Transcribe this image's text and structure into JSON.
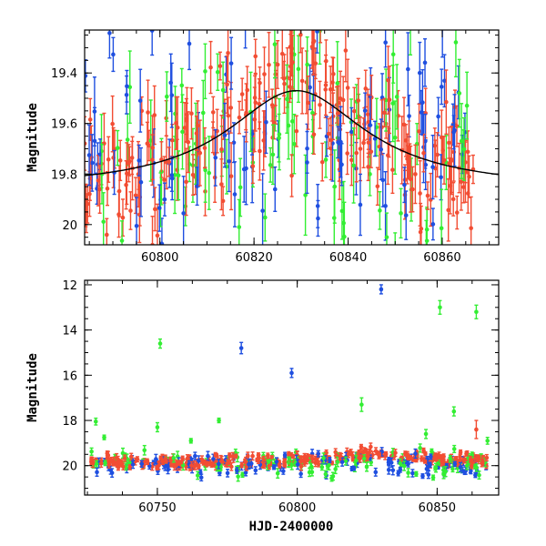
{
  "colors": {
    "blue": "#1f4fe0",
    "green": "#33ee33",
    "red": "#f24d33",
    "model": "#000000"
  },
  "chart_data": [
    {
      "type": "scatter",
      "panel": "top",
      "xlabel": "",
      "ylabel": "Magnitude",
      "xlim": [
        60784,
        60872
      ],
      "ylim": [
        20.08,
        19.23
      ],
      "y_inverted": true,
      "x_ticks": [
        60800,
        60820,
        60840,
        60860
      ],
      "y_ticks": [
        19.4,
        19.6,
        19.8,
        20
      ],
      "y_tick_labels": [
        "19.4",
        "19.6",
        "19.8",
        "20"
      ],
      "model_curve": {
        "peak_x": 60829,
        "peak_mag": 19.47,
        "baseline_mag": 19.86,
        "width_days": 18
      },
      "series": [
        {
          "color": "green",
          "n_points": 90,
          "x_range": [
            60784,
            60866
          ],
          "mean_mag": 19.7,
          "scatter_mag": 0.25,
          "typical_err": 0.11
        },
        {
          "color": "blue",
          "n_points": 100,
          "x_range": [
            60784,
            60865
          ],
          "mean_mag": 19.68,
          "scatter_mag": 0.22,
          "typical_err": 0.1
        },
        {
          "color": "red",
          "n_points": 230,
          "x_range": [
            60784,
            60867
          ],
          "follows_model": true,
          "scatter_mag": 0.12,
          "typical_err": 0.09
        }
      ]
    },
    {
      "type": "scatter",
      "panel": "bottom",
      "xlabel": "HJD-2400000",
      "ylabel": "Magnitude",
      "xlim": [
        60724,
        60872
      ],
      "ylim": [
        21.3,
        11.8
      ],
      "y_inverted": true,
      "x_ticks": [
        60750,
        60800,
        60850
      ],
      "y_ticks": [
        12,
        14,
        16,
        18,
        20
      ],
      "y_tick_labels": [
        "12",
        "14",
        "16",
        "18",
        "20"
      ],
      "outliers": [
        {
          "color": "blue",
          "x": 60830,
          "y": 12.2,
          "err": 0.2
        },
        {
          "color": "blue",
          "x": 60780,
          "y": 14.8,
          "err": 0.25
        },
        {
          "color": "blue",
          "x": 60798,
          "y": 15.9,
          "err": 0.2
        },
        {
          "color": "green",
          "x": 60851,
          "y": 13.0,
          "err": 0.3
        },
        {
          "color": "green",
          "x": 60864,
          "y": 13.2,
          "err": 0.3
        },
        {
          "color": "green",
          "x": 60751,
          "y": 14.6,
          "err": 0.2
        },
        {
          "color": "green",
          "x": 60823,
          "y": 17.3,
          "err": 0.3
        },
        {
          "color": "green",
          "x": 60856,
          "y": 17.6,
          "err": 0.2
        },
        {
          "color": "green",
          "x": 60728,
          "y": 18.05,
          "err": 0.15
        },
        {
          "color": "green",
          "x": 60750,
          "y": 18.3,
          "err": 0.2
        },
        {
          "color": "green",
          "x": 60772,
          "y": 18.0,
          "err": 0.1
        },
        {
          "color": "green",
          "x": 60846,
          "y": 18.6,
          "err": 0.2
        },
        {
          "color": "red",
          "x": 60864,
          "y": 18.4,
          "err": 0.4
        },
        {
          "color": "green",
          "x": 60731,
          "y": 18.75,
          "err": 0.1
        },
        {
          "color": "green",
          "x": 60762,
          "y": 18.9,
          "err": 0.1
        },
        {
          "color": "green",
          "x": 60868,
          "y": 18.9,
          "err": 0.15
        }
      ],
      "series": [
        {
          "color": "green",
          "n_points": 110,
          "x_range": [
            60726,
            60868
          ],
          "mean_mag": 19.85,
          "scatter_mag": 0.28,
          "typical_err": 0.15
        },
        {
          "color": "blue",
          "n_points": 120,
          "x_range": [
            60726,
            60868
          ],
          "mean_mag": 19.95,
          "scatter_mag": 0.25,
          "typical_err": 0.15
        },
        {
          "color": "red",
          "n_points": 320,
          "x_range": [
            60726,
            60868
          ],
          "follows_model": true,
          "scatter_mag": 0.14,
          "typical_err": 0.12
        }
      ]
    }
  ]
}
